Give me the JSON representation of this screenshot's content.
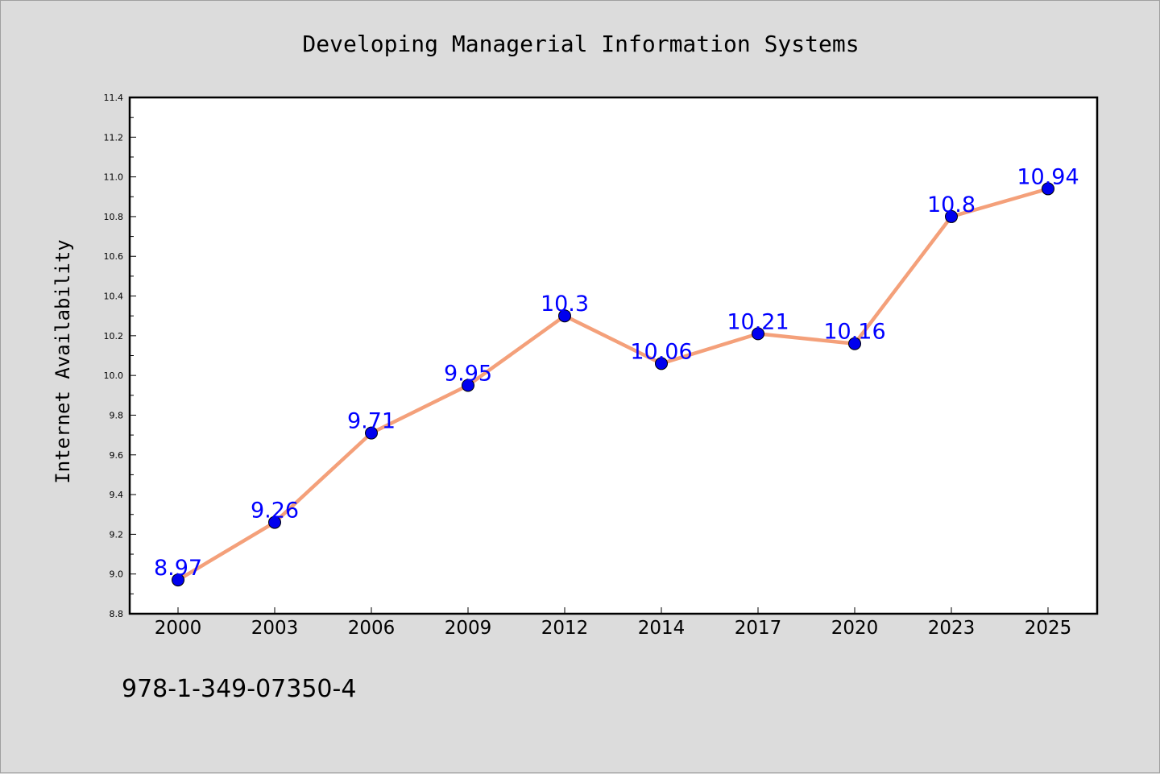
{
  "chart_data": {
    "type": "line",
    "title": "Developing Managerial Information Systems",
    "ylabel": "Internet Availability",
    "xlabel": "",
    "categories": [
      "2000",
      "2003",
      "2006",
      "2009",
      "2012",
      "2014",
      "2017",
      "2020",
      "2023",
      "2025"
    ],
    "series": [
      {
        "values": [
          8.97,
          9.26,
          9.71,
          9.95,
          10.3,
          10.06,
          10.21,
          10.16,
          10.8,
          10.94
        ],
        "labels": [
          "8.97",
          "9.26",
          "9.71",
          "9.95",
          "10.3",
          "10.06",
          "10.21",
          "10.16",
          "10.8",
          "10.94"
        ],
        "line_color": "#f4a07a",
        "marker_color": "#0000ee",
        "label_color": "#0000ff"
      }
    ],
    "ylim": [
      8.8,
      11.4
    ],
    "yticks": [
      "8.8",
      "9.0",
      "9.2",
      "9.4",
      "9.6",
      "9.8",
      "10.0",
      "10.2",
      "10.4",
      "10.6",
      "10.8",
      "11.0",
      "11.2",
      "11.4"
    ],
    "grid": false,
    "legend": "none"
  },
  "footer": {
    "isbn": "978-1-349-07350-4"
  }
}
